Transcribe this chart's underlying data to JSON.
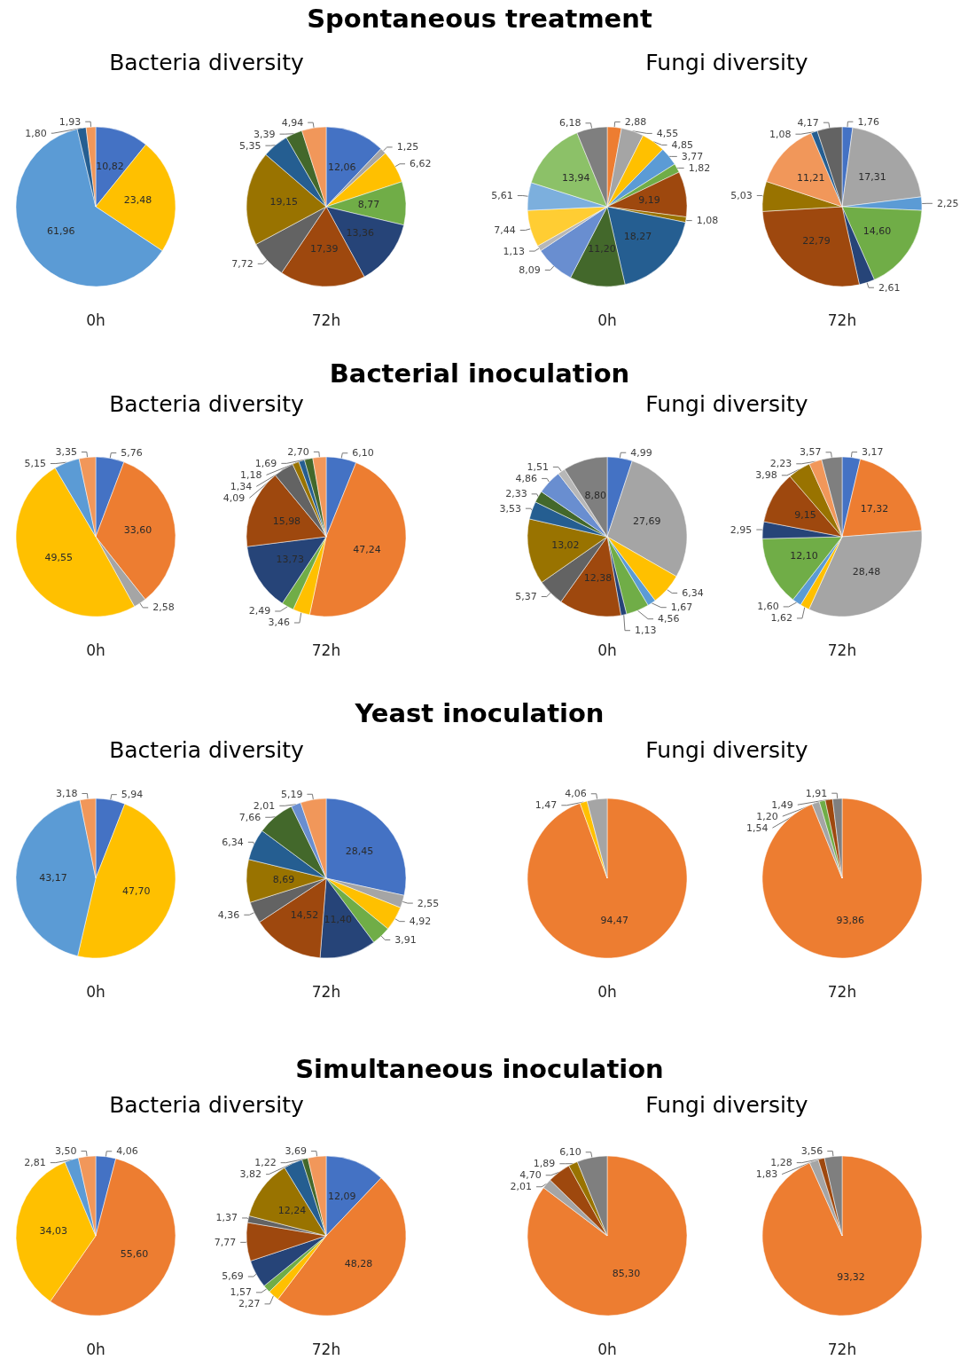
{
  "chart_data": [
    {
      "type": "pie",
      "title": "Spontaneous treatment",
      "subtitle": "Bacteria diversity",
      "xlabel": "0h",
      "categories": [
        null,
        null,
        null,
        null,
        null
      ],
      "values": [
        10.82,
        23.48,
        61.96,
        1.8,
        1.93
      ],
      "value_labels": [
        "10,82",
        "23,48",
        "61,96",
        "1,80",
        "1,93"
      ],
      "colors": [
        "#4472c4",
        "#ffc000",
        "#5b9bd5",
        "#255e91",
        "#f1975a"
      ],
      "legend": false
    },
    {
      "type": "pie",
      "xlabel": "72h",
      "categories": [
        null,
        null,
        null,
        null,
        null,
        null,
        null,
        null,
        null,
        null,
        null
      ],
      "values": [
        12.06,
        1.25,
        6.62,
        8.77,
        13.36,
        17.39,
        7.72,
        19.15,
        5.35,
        3.39,
        4.94
      ],
      "value_labels": [
        "12,06",
        "1,25",
        "6,62",
        "8,77",
        "13,36",
        "17,39",
        "7,72",
        "19,15",
        "5,35",
        "3,39",
        "4,94"
      ],
      "colors": [
        "#4472c4",
        "#a5a5a5",
        "#ffc000",
        "#70ad47",
        "#264478",
        "#9e480e",
        "#636363",
        "#997300",
        "#255e91",
        "#43682b",
        "#f1975a"
      ],
      "legend": false
    },
    {
      "type": "pie",
      "subtitle": "Fungi diversity",
      "xlabel": "0h",
      "categories": [
        null,
        null,
        null,
        null,
        null,
        null,
        null,
        null,
        null,
        null,
        null,
        null,
        null,
        null,
        null
      ],
      "values": [
        2.88,
        4.55,
        4.85,
        3.77,
        1.82,
        9.19,
        1.08,
        18.27,
        11.2,
        8.09,
        1.13,
        7.44,
        5.61,
        13.94,
        6.18
      ],
      "value_labels": [
        "2,88",
        "4,55",
        "4,85",
        "3,77",
        "1,82",
        "9,19",
        "1,08",
        "18,27",
        "11,20",
        "8,09",
        "1,13",
        "7,44",
        "5,61",
        "13,94",
        "6,18"
      ],
      "colors": [
        "#ed7d31",
        "#a5a5a5",
        "#ffc000",
        "#5b9bd5",
        "#70ad47",
        "#9e480e",
        "#997300",
        "#255e91",
        "#43682b",
        "#698ed0",
        "#b7b7b7",
        "#ffcd33",
        "#7cafdd",
        "#8cc168",
        "#7f7f7f"
      ],
      "legend": false
    },
    {
      "type": "pie",
      "xlabel": "72h",
      "categories": [
        null,
        null,
        null,
        null,
        null,
        null,
        null,
        null,
        null,
        null
      ],
      "values": [
        1.76,
        17.31,
        2.25,
        14.6,
        2.61,
        22.79,
        5.03,
        11.21,
        1.08,
        4.17
      ],
      "value_labels": [
        "1,76",
        "17,31",
        "2,25",
        "14,60",
        "2,61",
        "22,79",
        "5,03",
        "11,21",
        "1,08",
        "4,17"
      ],
      "colors": [
        "#4472c4",
        "#a5a5a5",
        "#5b9bd5",
        "#70ad47",
        "#264478",
        "#9e480e",
        "#997300",
        "#f1975a",
        "#255e91",
        "#636363"
      ],
      "legend": false
    },
    {
      "type": "pie",
      "title": "Bacterial inoculation",
      "subtitle": "Bacteria diversity",
      "xlabel": "0h",
      "categories": [
        null,
        null,
        null,
        null,
        null,
        null
      ],
      "values": [
        5.76,
        33.6,
        2.58,
        49.55,
        5.15,
        3.35
      ],
      "value_labels": [
        "5,76",
        "33,60",
        "2,58",
        "49,55",
        "5,15",
        "3,35"
      ],
      "colors": [
        "#4472c4",
        "#ed7d31",
        "#a5a5a5",
        "#ffc000",
        "#5b9bd5",
        "#f1975a"
      ],
      "legend": false
    },
    {
      "type": "pie",
      "xlabel": "72h",
      "categories": [
        null,
        null,
        null,
        null,
        null,
        null,
        null,
        null,
        null,
        null,
        null
      ],
      "values": [
        6.1,
        47.24,
        3.46,
        2.49,
        13.73,
        15.98,
        4.09,
        1.34,
        1.18,
        1.69,
        2.7
      ],
      "value_labels": [
        "6,10",
        "47,24",
        "3,46",
        "2,49",
        "13,73",
        "15,98",
        "4,09",
        "1,34",
        "1,18",
        "1,69",
        "2,70"
      ],
      "colors": [
        "#4472c4",
        "#ed7d31",
        "#ffc000",
        "#70ad47",
        "#264478",
        "#9e480e",
        "#636363",
        "#997300",
        "#255e91",
        "#43682b",
        "#f1975a"
      ],
      "legend": false
    },
    {
      "type": "pie",
      "subtitle": "Fungi diversity",
      "xlabel": "0h",
      "categories": [
        null,
        null,
        null,
        null,
        null,
        null,
        null,
        null,
        null,
        null,
        null,
        null,
        null,
        null
      ],
      "values": [
        4.99,
        27.69,
        6.34,
        1.67,
        4.56,
        1.13,
        12.38,
        5.37,
        13.02,
        3.53,
        2.33,
        4.86,
        1.51,
        8.8
      ],
      "value_labels": [
        "4,99",
        "27,69",
        "6,34",
        "1,67",
        "4,56",
        "1,13",
        "12,38",
        "5,37",
        "13,02",
        "3,53",
        "2,33",
        "4,86",
        "1,51",
        "8,80"
      ],
      "colors": [
        "#4472c4",
        "#a5a5a5",
        "#ffc000",
        "#5b9bd5",
        "#70ad47",
        "#264478",
        "#9e480e",
        "#636363",
        "#997300",
        "#255e91",
        "#43682b",
        "#698ed0",
        "#b7b7b7",
        "#7f7f7f"
      ],
      "legend": false
    },
    {
      "type": "pie",
      "xlabel": "72h",
      "categories": [
        null,
        null,
        null,
        null,
        null,
        null,
        null,
        null,
        null,
        null,
        null
      ],
      "values": [
        3.17,
        17.32,
        28.48,
        1.62,
        1.6,
        12.1,
        2.95,
        9.15,
        3.98,
        2.23,
        3.57
      ],
      "value_labels": [
        "3,17",
        "17,32",
        "28,48",
        "1,62",
        "1,60",
        "12,10",
        "2,95",
        "9,15",
        "3,98",
        "2,23",
        "3,57"
      ],
      "colors": [
        "#4472c4",
        "#ed7d31",
        "#a5a5a5",
        "#ffc000",
        "#5b9bd5",
        "#70ad47",
        "#264478",
        "#9e480e",
        "#997300",
        "#f1975a",
        "#7f7f7f"
      ],
      "legend": false
    },
    {
      "type": "pie",
      "title": "Yeast inoculation",
      "subtitle": "Bacteria diversity",
      "xlabel": "0h",
      "categories": [
        null,
        null,
        null,
        null
      ],
      "values": [
        5.94,
        47.7,
        43.17,
        3.18
      ],
      "value_labels": [
        "5,94",
        "47,70",
        "43,17",
        "3,18"
      ],
      "colors": [
        "#4472c4",
        "#ffc000",
        "#5b9bd5",
        "#f1975a"
      ],
      "legend": false
    },
    {
      "type": "pie",
      "xlabel": "72h",
      "categories": [
        null,
        null,
        null,
        null,
        null,
        null,
        null,
        null,
        null,
        null,
        null,
        null
      ],
      "values": [
        28.45,
        2.55,
        4.92,
        3.91,
        11.4,
        14.52,
        4.36,
        8.69,
        6.34,
        7.66,
        2.01,
        5.19
      ],
      "value_labels": [
        "28,45",
        "2,55",
        "4,92",
        "3,91",
        "11,40",
        "14,52",
        "4,36",
        "8,69",
        "6,34",
        "7,66",
        "2,01",
        "5,19"
      ],
      "colors": [
        "#4472c4",
        "#a5a5a5",
        "#ffc000",
        "#70ad47",
        "#264478",
        "#9e480e",
        "#636363",
        "#997300",
        "#255e91",
        "#43682b",
        "#698ed0",
        "#f1975a"
      ],
      "legend": false
    },
    {
      "type": "pie",
      "subtitle": "Fungi diversity",
      "xlabel": "0h",
      "categories": [
        null,
        null,
        null
      ],
      "values": [
        94.47,
        1.47,
        4.06
      ],
      "value_labels": [
        "94,47",
        "1,47",
        "4,06"
      ],
      "colors": [
        "#ed7d31",
        "#ffc000",
        "#a5a5a5"
      ],
      "legend": false
    },
    {
      "type": "pie",
      "xlabel": "72h",
      "categories": [
        null,
        null,
        null,
        null,
        null
      ],
      "values": [
        93.86,
        1.54,
        1.2,
        1.49,
        1.91
      ],
      "value_labels": [
        "93,86",
        "1,54",
        "1,20",
        "1,49",
        "1,91"
      ],
      "colors": [
        "#ed7d31",
        "#a5a5a5",
        "#70ad47",
        "#9e480e",
        "#7f7f7f"
      ],
      "legend": false
    },
    {
      "type": "pie",
      "title": "Simultaneous inoculation",
      "subtitle": "Bacteria diversity",
      "xlabel": "0h",
      "categories": [
        null,
        null,
        null,
        null,
        null
      ],
      "values": [
        4.06,
        55.6,
        34.03,
        2.81,
        3.5
      ],
      "value_labels": [
        "4,06",
        "55,60",
        "34,03",
        "2,81",
        "3,50"
      ],
      "colors": [
        "#4472c4",
        "#ed7d31",
        "#ffc000",
        "#5b9bd5",
        "#f1975a"
      ],
      "legend": false
    },
    {
      "type": "pie",
      "xlabel": "72h",
      "categories": [
        null,
        null,
        null,
        null,
        null,
        null,
        null,
        null,
        null,
        null,
        null
      ],
      "values": [
        12.09,
        48.28,
        2.27,
        1.57,
        5.69,
        7.77,
        1.37,
        12.24,
        3.82,
        1.22,
        3.69
      ],
      "value_labels": [
        "12,09",
        "48,28",
        "2,27",
        "1,57",
        "5,69",
        "7,77",
        "1,37",
        "12,24",
        "3,82",
        "1,22",
        "3,69"
      ],
      "colors": [
        "#4472c4",
        "#ed7d31",
        "#ffc000",
        "#70ad47",
        "#264478",
        "#9e480e",
        "#636363",
        "#997300",
        "#255e91",
        "#43682b",
        "#f1975a"
      ],
      "legend": false
    },
    {
      "type": "pie",
      "subtitle": "Fungi diversity",
      "xlabel": "0h",
      "categories": [
        null,
        null,
        null,
        null,
        null
      ],
      "values": [
        85.3,
        2.01,
        4.7,
        1.89,
        6.1
      ],
      "value_labels": [
        "85,30",
        "2,01",
        "4,70",
        "1,89",
        "6,10"
      ],
      "colors": [
        "#ed7d31",
        "#a5a5a5",
        "#9e480e",
        "#997300",
        "#7f7f7f"
      ],
      "legend": false
    },
    {
      "type": "pie",
      "xlabel": "72h",
      "categories": [
        null,
        null,
        null,
        null
      ],
      "values": [
        93.32,
        1.83,
        1.28,
        3.56
      ],
      "value_labels": [
        "93,32",
        "1,83",
        "1,28",
        "3,56"
      ],
      "colors": [
        "#ed7d31",
        "#a5a5a5",
        "#9e480e",
        "#7f7f7f"
      ],
      "legend": false
    }
  ]
}
